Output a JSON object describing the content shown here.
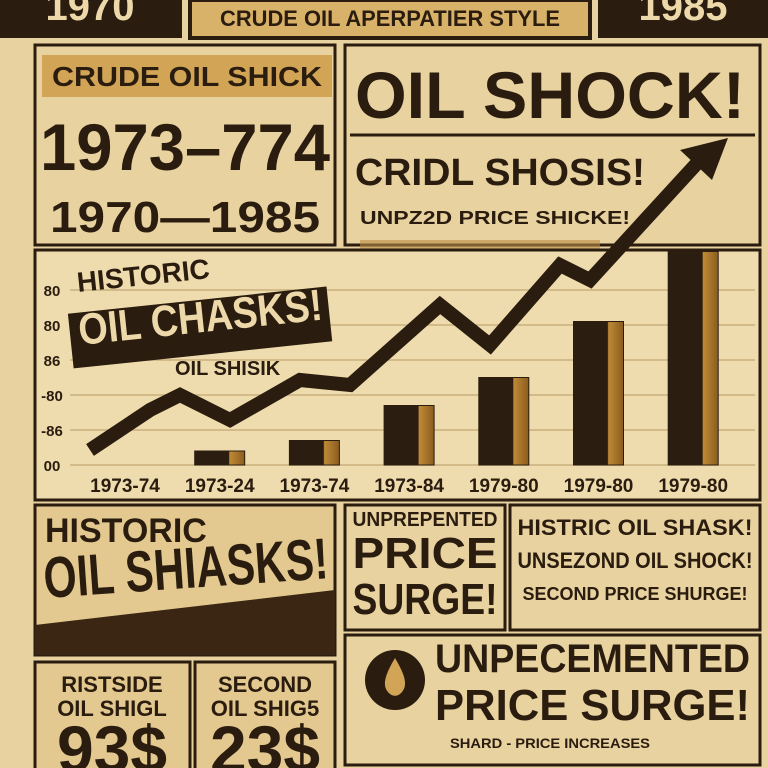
{
  "header": {
    "left": "1970",
    "center": "CRUDE OIL APERPATIER STYLE",
    "right": "1985"
  },
  "left_panel": {
    "tag": "CRUDE OIL SHICK",
    "years": "1973–774",
    "range": "1970—1985"
  },
  "right_panel": {
    "headline": "OIL SHOCK!",
    "sub": "CRIDL SHOSIS!",
    "small": "UNPZ2D PRICE SHICKE!"
  },
  "chart_overlay": {
    "line1": "HISTORIC",
    "line2": "OIL CHASKS!",
    "line3": "OIL SHISIK"
  },
  "chart_data": {
    "type": "bar",
    "categories": [
      "1973-74",
      "1973-24",
      "1973-74",
      "1973-84",
      "1979-80",
      "1979-80",
      "1979-80"
    ],
    "values": [
      null,
      0.4,
      0.7,
      1.7,
      2.5,
      4.1,
      6.1
    ],
    "color": "#2b1d10",
    "ylim": [
      0,
      6.5
    ],
    "yticks": [
      {
        "value": 0,
        "label": "00"
      },
      {
        "value": 1,
        "label": "-86"
      },
      {
        "value": 2,
        "label": "-80"
      },
      {
        "value": 3,
        "label": "86"
      },
      {
        "value": 4,
        "label": "80"
      },
      {
        "value": 5,
        "label": "80"
      }
    ],
    "grid": true
  },
  "bottom": {
    "left": {
      "line1": "HISTORIC",
      "line2": "OIL SHIASKS!"
    },
    "middle": {
      "line1": "UNPREPENTED",
      "line2": "PRICE",
      "line3": "SURGE!"
    },
    "right": {
      "line1": "HISTRIC OIL SHASK!",
      "line2": "UNSEZOND OIL SHOCK!",
      "line3": "SECOND PRICE SHURGE!"
    }
  },
  "footer": {
    "box1": {
      "line1": "RISTSIDE",
      "line2": "OIL SHIGL",
      "price": "93$"
    },
    "box2": {
      "line1": "SECOND",
      "line2": "OIL SHIG5",
      "price": "23$"
    },
    "banner": {
      "line1": "UNPECEMENTED",
      "line2": "PRICE SURGE!",
      "small": "SHARD - PRICE INCREASES"
    }
  }
}
